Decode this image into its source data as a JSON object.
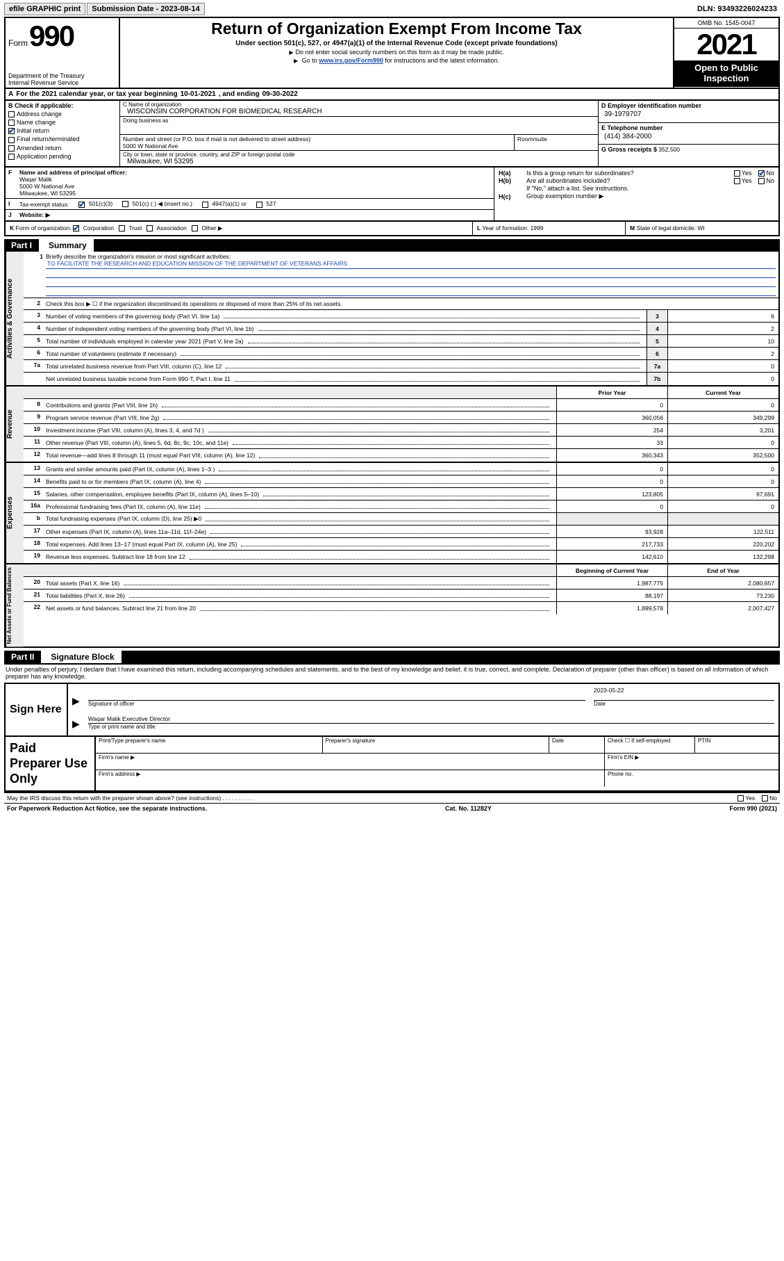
{
  "topbar": {
    "efile": "efile GRAPHIC print",
    "subdate_label": "Submission Date - 2023-08-14",
    "dln": "DLN: 93493226024233"
  },
  "header": {
    "form_word": "Form",
    "form_num": "990",
    "dept": "Department of the Treasury",
    "irs": "Internal Revenue Service",
    "title": "Return of Organization Exempt From Income Tax",
    "subtitle": "Under section 501(c), 527, or 4947(a)(1) of the Internal Revenue Code (except private foundations)",
    "note1": "Do not enter social security numbers on this form as it may be made public.",
    "note2_pre": "Go to ",
    "note2_link": "www.irs.gov/Form990",
    "note2_post": " for instructions and the latest information.",
    "omb": "OMB No. 1545-0047",
    "year": "2021",
    "open1": "Open to Public",
    "open2": "Inspection"
  },
  "lineA": {
    "text_pre": "For the 2021 calendar year, or tax year beginning ",
    "begin": "10-01-2021",
    "mid": " , and ending ",
    "end": "09-30-2022"
  },
  "colB": {
    "header": "Check if applicable:",
    "items": [
      {
        "label": "Address change",
        "checked": false
      },
      {
        "label": "Name change",
        "checked": false
      },
      {
        "label": "Initial return",
        "checked": true
      },
      {
        "label": "Final return/terminated",
        "checked": false
      },
      {
        "label": "Amended return",
        "checked": false
      },
      {
        "label": "Application pending",
        "checked": false
      }
    ]
  },
  "colC": {
    "name_cap": "C Name of organization",
    "name": "WISCONSIN CORPORATION FOR BIOMEDICAL RESEARCH",
    "dba_cap": "Doing business as",
    "dba": "",
    "addr_cap": "Number and street (or P.O. box if mail is not delivered to street address)",
    "addr": "5000 W National Ave",
    "suite_cap": "Room/suite",
    "city_cap": "City or town, state or province, country, and ZIP or foreign postal code",
    "city": "Milwaukee, WI  53295"
  },
  "colDE": {
    "d_cap": "D Employer identification number",
    "d_val": "39-1979707",
    "e_cap": "E Telephone number",
    "e_val": "(414) 384-2000",
    "g_cap": "G Gross receipts $",
    "g_val": "352,500"
  },
  "rowF": {
    "cap": "Name and address of principal officer:",
    "name": "Waqar Malik",
    "addr1": "5000 W National Ave",
    "addr2": "Milwaukee, WI  53295"
  },
  "rowI": {
    "cap": "Tax-exempt status:",
    "opt1": "501(c)(3)",
    "opt2": "501(c) (   ) ◀ (insert no.)",
    "opt3": "4947(a)(1) or",
    "opt4": "527"
  },
  "rowJ": {
    "cap": "Website: ▶"
  },
  "rightH": {
    "ha": "Is this a group return for subordinates?",
    "hb": "Are all subordinates included?",
    "hnote": "If \"No,\" attach a list. See instructions.",
    "hc": "Group exemption number ▶",
    "yes": "Yes",
    "no": "No"
  },
  "rowK": {
    "cap": "Form of organization:",
    "opts": [
      "Corporation",
      "Trust",
      "Association",
      "Other ▶"
    ],
    "checked_idx": 0
  },
  "rowL": {
    "cap": "Year of formation:",
    "val": "1999"
  },
  "rowM": {
    "cap": "State of legal domicile:",
    "val": "WI"
  },
  "part1": {
    "bar": "Part I",
    "title": "Summary",
    "l1_cap": "Briefly describe the organization's mission or most significant activities:",
    "l1_mission": "TO FACILITATE THE RESEARCH AND EDUCATION MISSION OF THE DEPARTMENT OF VETERANS AFFAIRS",
    "l2": "Check this box ▶ ☐  if the organization discontinued its operations or disposed of more than 25% of its net assets.",
    "rows_governance": [
      {
        "n": "3",
        "d": "Number of voting members of the governing body (Part VI, line 1a)",
        "box": "3",
        "v": "6"
      },
      {
        "n": "4",
        "d": "Number of independent voting members of the governing body (Part VI, line 1b)",
        "box": "4",
        "v": "2"
      },
      {
        "n": "5",
        "d": "Total number of individuals employed in calendar year 2021 (Part V, line 2a)",
        "box": "5",
        "v": "10"
      },
      {
        "n": "6",
        "d": "Total number of volunteers (estimate if necessary)",
        "box": "6",
        "v": "2"
      },
      {
        "n": "7a",
        "d": "Total unrelated business revenue from Part VIII, column (C), line 12",
        "box": "7a",
        "v": "0"
      },
      {
        "n": "",
        "d": "Net unrelated business taxable income from Form 990-T, Part I, line 11",
        "box": "7b",
        "v": "0"
      }
    ],
    "hdr_prior": "Prior Year",
    "hdr_curr": "Current Year",
    "rows_revenue": [
      {
        "n": "8",
        "d": "Contributions and grants (Part VIII, line 1h)",
        "p": "0",
        "c": "0"
      },
      {
        "n": "9",
        "d": "Program service revenue (Part VIII, line 2g)",
        "p": "360,056",
        "c": "349,299"
      },
      {
        "n": "10",
        "d": "Investment income (Part VIII, column (A), lines 3, 4, and 7d )",
        "p": "254",
        "c": "3,201"
      },
      {
        "n": "11",
        "d": "Other revenue (Part VIII, column (A), lines 5, 6d, 8c, 9c, 10c, and 11e)",
        "p": "33",
        "c": "0"
      },
      {
        "n": "12",
        "d": "Total revenue—add lines 8 through 11 (must equal Part VIII, column (A), line 12)",
        "p": "360,343",
        "c": "352,500"
      }
    ],
    "rows_expenses": [
      {
        "n": "13",
        "d": "Grants and similar amounts paid (Part IX, column (A), lines 1–3 )",
        "p": "0",
        "c": "0"
      },
      {
        "n": "14",
        "d": "Benefits paid to or for members (Part IX, column (A), line 4)",
        "p": "0",
        "c": "0"
      },
      {
        "n": "15",
        "d": "Salaries, other compensation, employee benefits (Part IX, column (A), lines 5–10)",
        "p": "123,805",
        "c": "97,691"
      },
      {
        "n": "16a",
        "d": "Professional fundraising fees (Part IX, column (A), line 11e)",
        "p": "0",
        "c": "0"
      },
      {
        "n": "b",
        "d": "Total fundraising expenses (Part IX, column (D), line 25) ▶0",
        "p": "",
        "c": "",
        "shade": true
      },
      {
        "n": "17",
        "d": "Other expenses (Part IX, column (A), lines 11a–11d, 11f–24e)",
        "p": "93,928",
        "c": "122,511"
      },
      {
        "n": "18",
        "d": "Total expenses. Add lines 13–17 (must equal Part IX, column (A), line 25)",
        "p": "217,733",
        "c": "220,202"
      },
      {
        "n": "19",
        "d": "Revenue less expenses. Subtract line 18 from line 12",
        "p": "142,610",
        "c": "132,298"
      }
    ],
    "hdr_boy": "Beginning of Current Year",
    "hdr_eoy": "End of Year",
    "rows_net": [
      {
        "n": "20",
        "d": "Total assets (Part X, line 16)",
        "p": "1,987,775",
        "c": "2,080,657"
      },
      {
        "n": "21",
        "d": "Total liabilities (Part X, line 26)",
        "p": "88,197",
        "c": "73,230"
      },
      {
        "n": "22",
        "d": "Net assets or fund balances. Subtract line 21 from line 20",
        "p": "1,899,578",
        "c": "2,007,427"
      }
    ],
    "side_labels": [
      "Activities & Governance",
      "Revenue",
      "Expenses",
      "Net Assets or Fund Balances"
    ]
  },
  "part2": {
    "bar": "Part II",
    "title": "Signature Block",
    "decl": "Under penalties of perjury, I declare that I have examined this return, including accompanying schedules and statements, and to the best of my knowledge and belief, it is true, correct, and complete. Declaration of preparer (other than officer) is based on all information of which preparer has any knowledge.",
    "sign_here": "Sign Here",
    "sig_cap": "Signature of officer",
    "date_cap": "Date",
    "date_val": "2023-05-22",
    "name_line": "Waqar Malik  Executive Director",
    "name_cap": "Type or print name and title",
    "paid": "Paid Preparer Use Only",
    "g_headers": [
      "Print/Type preparer's name",
      "Preparer's signature",
      "Date"
    ],
    "check_se": "Check ☐ if self-employed",
    "ptin": "PTIN",
    "firm_name": "Firm's name  ▶",
    "firm_ein": "Firm's EIN ▶",
    "firm_addr": "Firm's address ▶",
    "phone": "Phone no.",
    "discuss": "May the IRS discuss this return with the preparer shown above? (see instructions)",
    "paperwork": "For Paperwork Reduction Act Notice, see the separate instructions.",
    "cat": "Cat. No. 11282Y",
    "formno": "Form 990 (2021)"
  },
  "colors": {
    "link": "#1a4aa8",
    "shade": "#ececec",
    "border": "#000000",
    "bg": "#ffffff",
    "check": "#1a4aa8"
  }
}
